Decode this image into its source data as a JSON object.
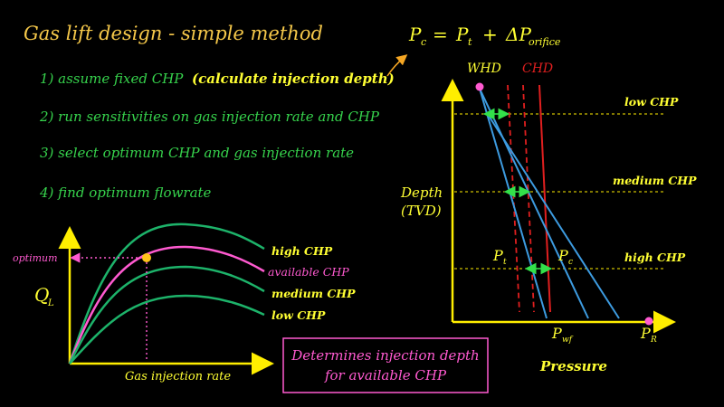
{
  "title": "Gas lift design - simple method",
  "equation": {
    "pc": "P",
    "pc_sub": "c",
    "eq": "=",
    "pt": "P",
    "pt_sub": "t",
    "plus": "+",
    "dp": "ΔP",
    "dp_sub": "orifice"
  },
  "steps": [
    {
      "text": "1) assume fixed CHP",
      "extra": "(calculate injection depth)"
    },
    {
      "text": "2) run sensitivities on gas injection rate and CHP"
    },
    {
      "text": "3) select optimum CHP and gas injection rate"
    },
    {
      "text": "4) find optimum flowrate"
    }
  ],
  "left_chart": {
    "ylabel": "Q",
    "ylabel_sub": "L",
    "xlabel": "Gas injection rate",
    "optimum_label": "optimum",
    "curves": [
      "high CHP",
      "available CHP",
      "medium CHP",
      "low CHP"
    ]
  },
  "callout": {
    "line1": "Determines injection depth",
    "line2": "for available CHP"
  },
  "right_chart": {
    "whp": "WHD",
    "chp": "CHD",
    "ylabel1": "Depth",
    "ylabel2": "(TVD)",
    "xlabel": "Pressure",
    "levels": [
      "low CHP",
      "medium CHP",
      "high CHP"
    ],
    "pt": "P",
    "pt_sub": "t",
    "pc": "P",
    "pc_sub": "c",
    "pwf": "P",
    "pwf_sub": "wf",
    "pr": "P",
    "pr_sub": "R"
  },
  "colors": {
    "title": "#f5c84a",
    "steps": "#36d24c",
    "text": "#ffff33",
    "green": "#1db36a",
    "pink": "#ff5ad0",
    "blue": "#3d9be0",
    "red": "#e01f1f",
    "yellow": "#ffee00",
    "optimum": "#ff5ad0"
  }
}
